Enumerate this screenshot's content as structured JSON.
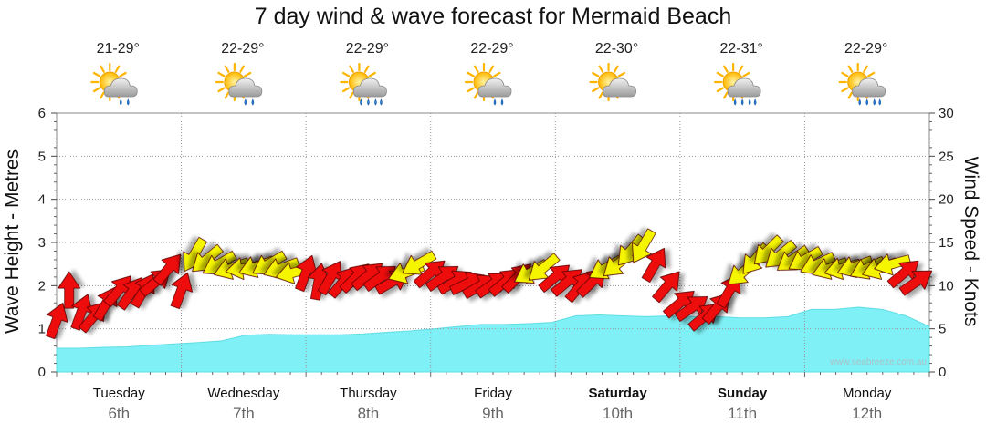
{
  "chart_data": {
    "type": "area",
    "title": "7 day wind & wave forecast for Mermaid Beach",
    "ylabel_left": "Wave Height - Metres",
    "ylabel_right": "Wind Speed - Knots",
    "ylim_left": [
      0,
      6
    ],
    "ylim_right": [
      0,
      30
    ],
    "yticks_left": [
      "0",
      "1",
      "2",
      "3",
      "4",
      "5",
      "6"
    ],
    "yticks_right": [
      "0",
      "5",
      "10",
      "15",
      "20",
      "25",
      "30"
    ],
    "grid": true,
    "days": [
      {
        "name": "Tuesday",
        "date": "6th",
        "temp": "21-29°",
        "weather": "partly-cloudy-showers",
        "bold": false
      },
      {
        "name": "Wednesday",
        "date": "7th",
        "temp": "22-29°",
        "weather": "partly-cloudy-showers",
        "bold": false
      },
      {
        "name": "Thursday",
        "date": "8th",
        "temp": "22-29°",
        "weather": "partly-cloudy-rain",
        "bold": false
      },
      {
        "name": "Friday",
        "date": "9th",
        "temp": "22-29°",
        "weather": "partly-cloudy-showers",
        "bold": false
      },
      {
        "name": "Saturday",
        "date": "10th",
        "temp": "22-30°",
        "weather": "partly-cloudy",
        "bold": true
      },
      {
        "name": "Sunday",
        "date": "11th",
        "temp": "22-31°",
        "weather": "partly-cloudy-rain",
        "bold": true
      },
      {
        "name": "Monday",
        "date": "12th",
        "temp": "22-29°",
        "weather": "partly-cloudy-rain",
        "bold": false
      }
    ],
    "wave_height_series": {
      "name": "Wave Height",
      "color": "#7ff0f5",
      "values": [
        0.55,
        0.55,
        0.57,
        0.58,
        0.62,
        0.65,
        0.68,
        0.72,
        0.85,
        0.87,
        0.86,
        0.86,
        0.86,
        0.88,
        0.92,
        0.95,
        1.0,
        1.05,
        1.1,
        1.1,
        1.12,
        1.15,
        1.3,
        1.32,
        1.3,
        1.28,
        1.3,
        1.28,
        1.28,
        1.25,
        1.25,
        1.28,
        1.45,
        1.45,
        1.5,
        1.45,
        1.3,
        1.05
      ]
    },
    "wind_series": {
      "name": "Wind Speed",
      "units": "knots",
      "colors": {
        "offshore": "#ee1111",
        "onshore": "#f5f500"
      },
      "points": [
        {
          "x": 0.0,
          "knots": 6.0,
          "dir": 200,
          "kind": "offshore"
        },
        {
          "x": 0.1,
          "knots": 9.5,
          "dir": 180,
          "kind": "offshore"
        },
        {
          "x": 0.2,
          "knots": 7.0,
          "dir": 200,
          "kind": "offshore"
        },
        {
          "x": 0.3,
          "knots": 6.5,
          "dir": 220,
          "kind": "offshore"
        },
        {
          "x": 0.4,
          "knots": 8.0,
          "dir": 210,
          "kind": "offshore"
        },
        {
          "x": 0.5,
          "knots": 9.5,
          "dir": 220,
          "kind": "offshore"
        },
        {
          "x": 0.6,
          "knots": 9.2,
          "dir": 215,
          "kind": "offshore"
        },
        {
          "x": 0.7,
          "knots": 9.5,
          "dir": 210,
          "kind": "offshore"
        },
        {
          "x": 0.8,
          "knots": 10.5,
          "dir": 230,
          "kind": "offshore"
        },
        {
          "x": 0.9,
          "knots": 12.0,
          "dir": 220,
          "kind": "offshore"
        },
        {
          "x": 1.0,
          "knots": 9.5,
          "dir": 200,
          "kind": "offshore"
        },
        {
          "x": 1.1,
          "knots": 13.5,
          "dir": 30,
          "kind": "onshore"
        },
        {
          "x": 1.2,
          "knots": 13.0,
          "dir": 50,
          "kind": "onshore"
        },
        {
          "x": 1.3,
          "knots": 12.5,
          "dir": 60,
          "kind": "onshore"
        },
        {
          "x": 1.4,
          "knots": 12.0,
          "dir": 70,
          "kind": "onshore"
        },
        {
          "x": 1.5,
          "knots": 12.0,
          "dir": 80,
          "kind": "onshore"
        },
        {
          "x": 1.6,
          "knots": 12.2,
          "dir": 70,
          "kind": "onshore"
        },
        {
          "x": 1.7,
          "knots": 12.5,
          "dir": 60,
          "kind": "onshore"
        },
        {
          "x": 1.8,
          "knots": 12.0,
          "dir": 70,
          "kind": "onshore"
        },
        {
          "x": 1.9,
          "knots": 11.5,
          "dir": 75,
          "kind": "onshore"
        },
        {
          "x": 2.0,
          "knots": 11.5,
          "dir": 200,
          "kind": "offshore"
        },
        {
          "x": 2.1,
          "knots": 10.5,
          "dir": 190,
          "kind": "offshore"
        },
        {
          "x": 2.2,
          "knots": 11.0,
          "dir": 210,
          "kind": "offshore"
        },
        {
          "x": 2.3,
          "knots": 10.5,
          "dir": 220,
          "kind": "offshore"
        },
        {
          "x": 2.4,
          "knots": 11.0,
          "dir": 225,
          "kind": "offshore"
        },
        {
          "x": 2.5,
          "knots": 11.2,
          "dir": 230,
          "kind": "offshore"
        },
        {
          "x": 2.6,
          "knots": 11.0,
          "dir": 235,
          "kind": "offshore"
        },
        {
          "x": 2.7,
          "knots": 10.5,
          "dir": 240,
          "kind": "offshore"
        },
        {
          "x": 2.8,
          "knots": 11.5,
          "dir": 70,
          "kind": "onshore"
        },
        {
          "x": 2.9,
          "knots": 12.5,
          "dir": 60,
          "kind": "onshore"
        },
        {
          "x": 3.0,
          "knots": 11.5,
          "dir": 230,
          "kind": "offshore"
        },
        {
          "x": 3.1,
          "knots": 11.0,
          "dir": 235,
          "kind": "offshore"
        },
        {
          "x": 3.2,
          "knots": 10.5,
          "dir": 240,
          "kind": "offshore"
        },
        {
          "x": 3.3,
          "knots": 10.3,
          "dir": 245,
          "kind": "offshore"
        },
        {
          "x": 3.4,
          "knots": 10.0,
          "dir": 240,
          "kind": "offshore"
        },
        {
          "x": 3.5,
          "knots": 10.2,
          "dir": 235,
          "kind": "offshore"
        },
        {
          "x": 3.6,
          "knots": 10.5,
          "dir": 230,
          "kind": "offshore"
        },
        {
          "x": 3.7,
          "knots": 11.0,
          "dir": 225,
          "kind": "offshore"
        },
        {
          "x": 3.8,
          "knots": 11.5,
          "dir": 60,
          "kind": "onshore"
        },
        {
          "x": 3.9,
          "knots": 12.0,
          "dir": 50,
          "kind": "onshore"
        },
        {
          "x": 4.0,
          "knots": 11.0,
          "dir": 230,
          "kind": "offshore"
        },
        {
          "x": 4.1,
          "knots": 10.5,
          "dir": 230,
          "kind": "offshore"
        },
        {
          "x": 4.2,
          "knots": 10.0,
          "dir": 220,
          "kind": "offshore"
        },
        {
          "x": 4.3,
          "knots": 10.5,
          "dir": 225,
          "kind": "offshore"
        },
        {
          "x": 4.4,
          "knots": 12.0,
          "dir": 60,
          "kind": "onshore"
        },
        {
          "x": 4.5,
          "knots": 12.5,
          "dir": 50,
          "kind": "onshore"
        },
        {
          "x": 4.6,
          "knots": 14.0,
          "dir": 40,
          "kind": "onshore"
        },
        {
          "x": 4.7,
          "knots": 14.5,
          "dir": 30,
          "kind": "onshore"
        },
        {
          "x": 4.8,
          "knots": 12.5,
          "dir": 210,
          "kind": "offshore"
        },
        {
          "x": 4.9,
          "knots": 10.0,
          "dir": 220,
          "kind": "offshore"
        },
        {
          "x": 5.0,
          "knots": 8.0,
          "dir": 230,
          "kind": "offshore"
        },
        {
          "x": 5.1,
          "knots": 7.5,
          "dir": 235,
          "kind": "offshore"
        },
        {
          "x": 5.2,
          "knots": 6.5,
          "dir": 230,
          "kind": "offshore"
        },
        {
          "x": 5.3,
          "knots": 7.5,
          "dir": 220,
          "kind": "offshore"
        },
        {
          "x": 5.4,
          "knots": 9.5,
          "dir": 210,
          "kind": "offshore"
        },
        {
          "x": 5.5,
          "knots": 11.5,
          "dir": 50,
          "kind": "onshore"
        },
        {
          "x": 5.6,
          "knots": 13.0,
          "dir": 40,
          "kind": "onshore"
        },
        {
          "x": 5.7,
          "knots": 14.0,
          "dir": 45,
          "kind": "onshore"
        },
        {
          "x": 5.8,
          "knots": 13.5,
          "dir": 50,
          "kind": "onshore"
        },
        {
          "x": 5.9,
          "knots": 13.0,
          "dir": 55,
          "kind": "onshore"
        },
        {
          "x": 6.0,
          "knots": 13.0,
          "dir": 60,
          "kind": "onshore"
        },
        {
          "x": 6.1,
          "knots": 12.5,
          "dir": 65,
          "kind": "onshore"
        },
        {
          "x": 6.2,
          "knots": 12.0,
          "dir": 70,
          "kind": "onshore"
        },
        {
          "x": 6.3,
          "knots": 12.0,
          "dir": 75,
          "kind": "onshore"
        },
        {
          "x": 6.4,
          "knots": 12.2,
          "dir": 70,
          "kind": "onshore"
        },
        {
          "x": 6.5,
          "knots": 12.0,
          "dir": 65,
          "kind": "onshore"
        },
        {
          "x": 6.6,
          "knots": 12.0,
          "dir": 70,
          "kind": "onshore"
        },
        {
          "x": 6.7,
          "knots": 12.5,
          "dir": 75,
          "kind": "onshore"
        },
        {
          "x": 6.8,
          "knots": 11.5,
          "dir": 230,
          "kind": "offshore"
        },
        {
          "x": 6.9,
          "knots": 10.5,
          "dir": 235,
          "kind": "offshore"
        }
      ]
    },
    "watermark": "www.seabreeze.com.au"
  }
}
